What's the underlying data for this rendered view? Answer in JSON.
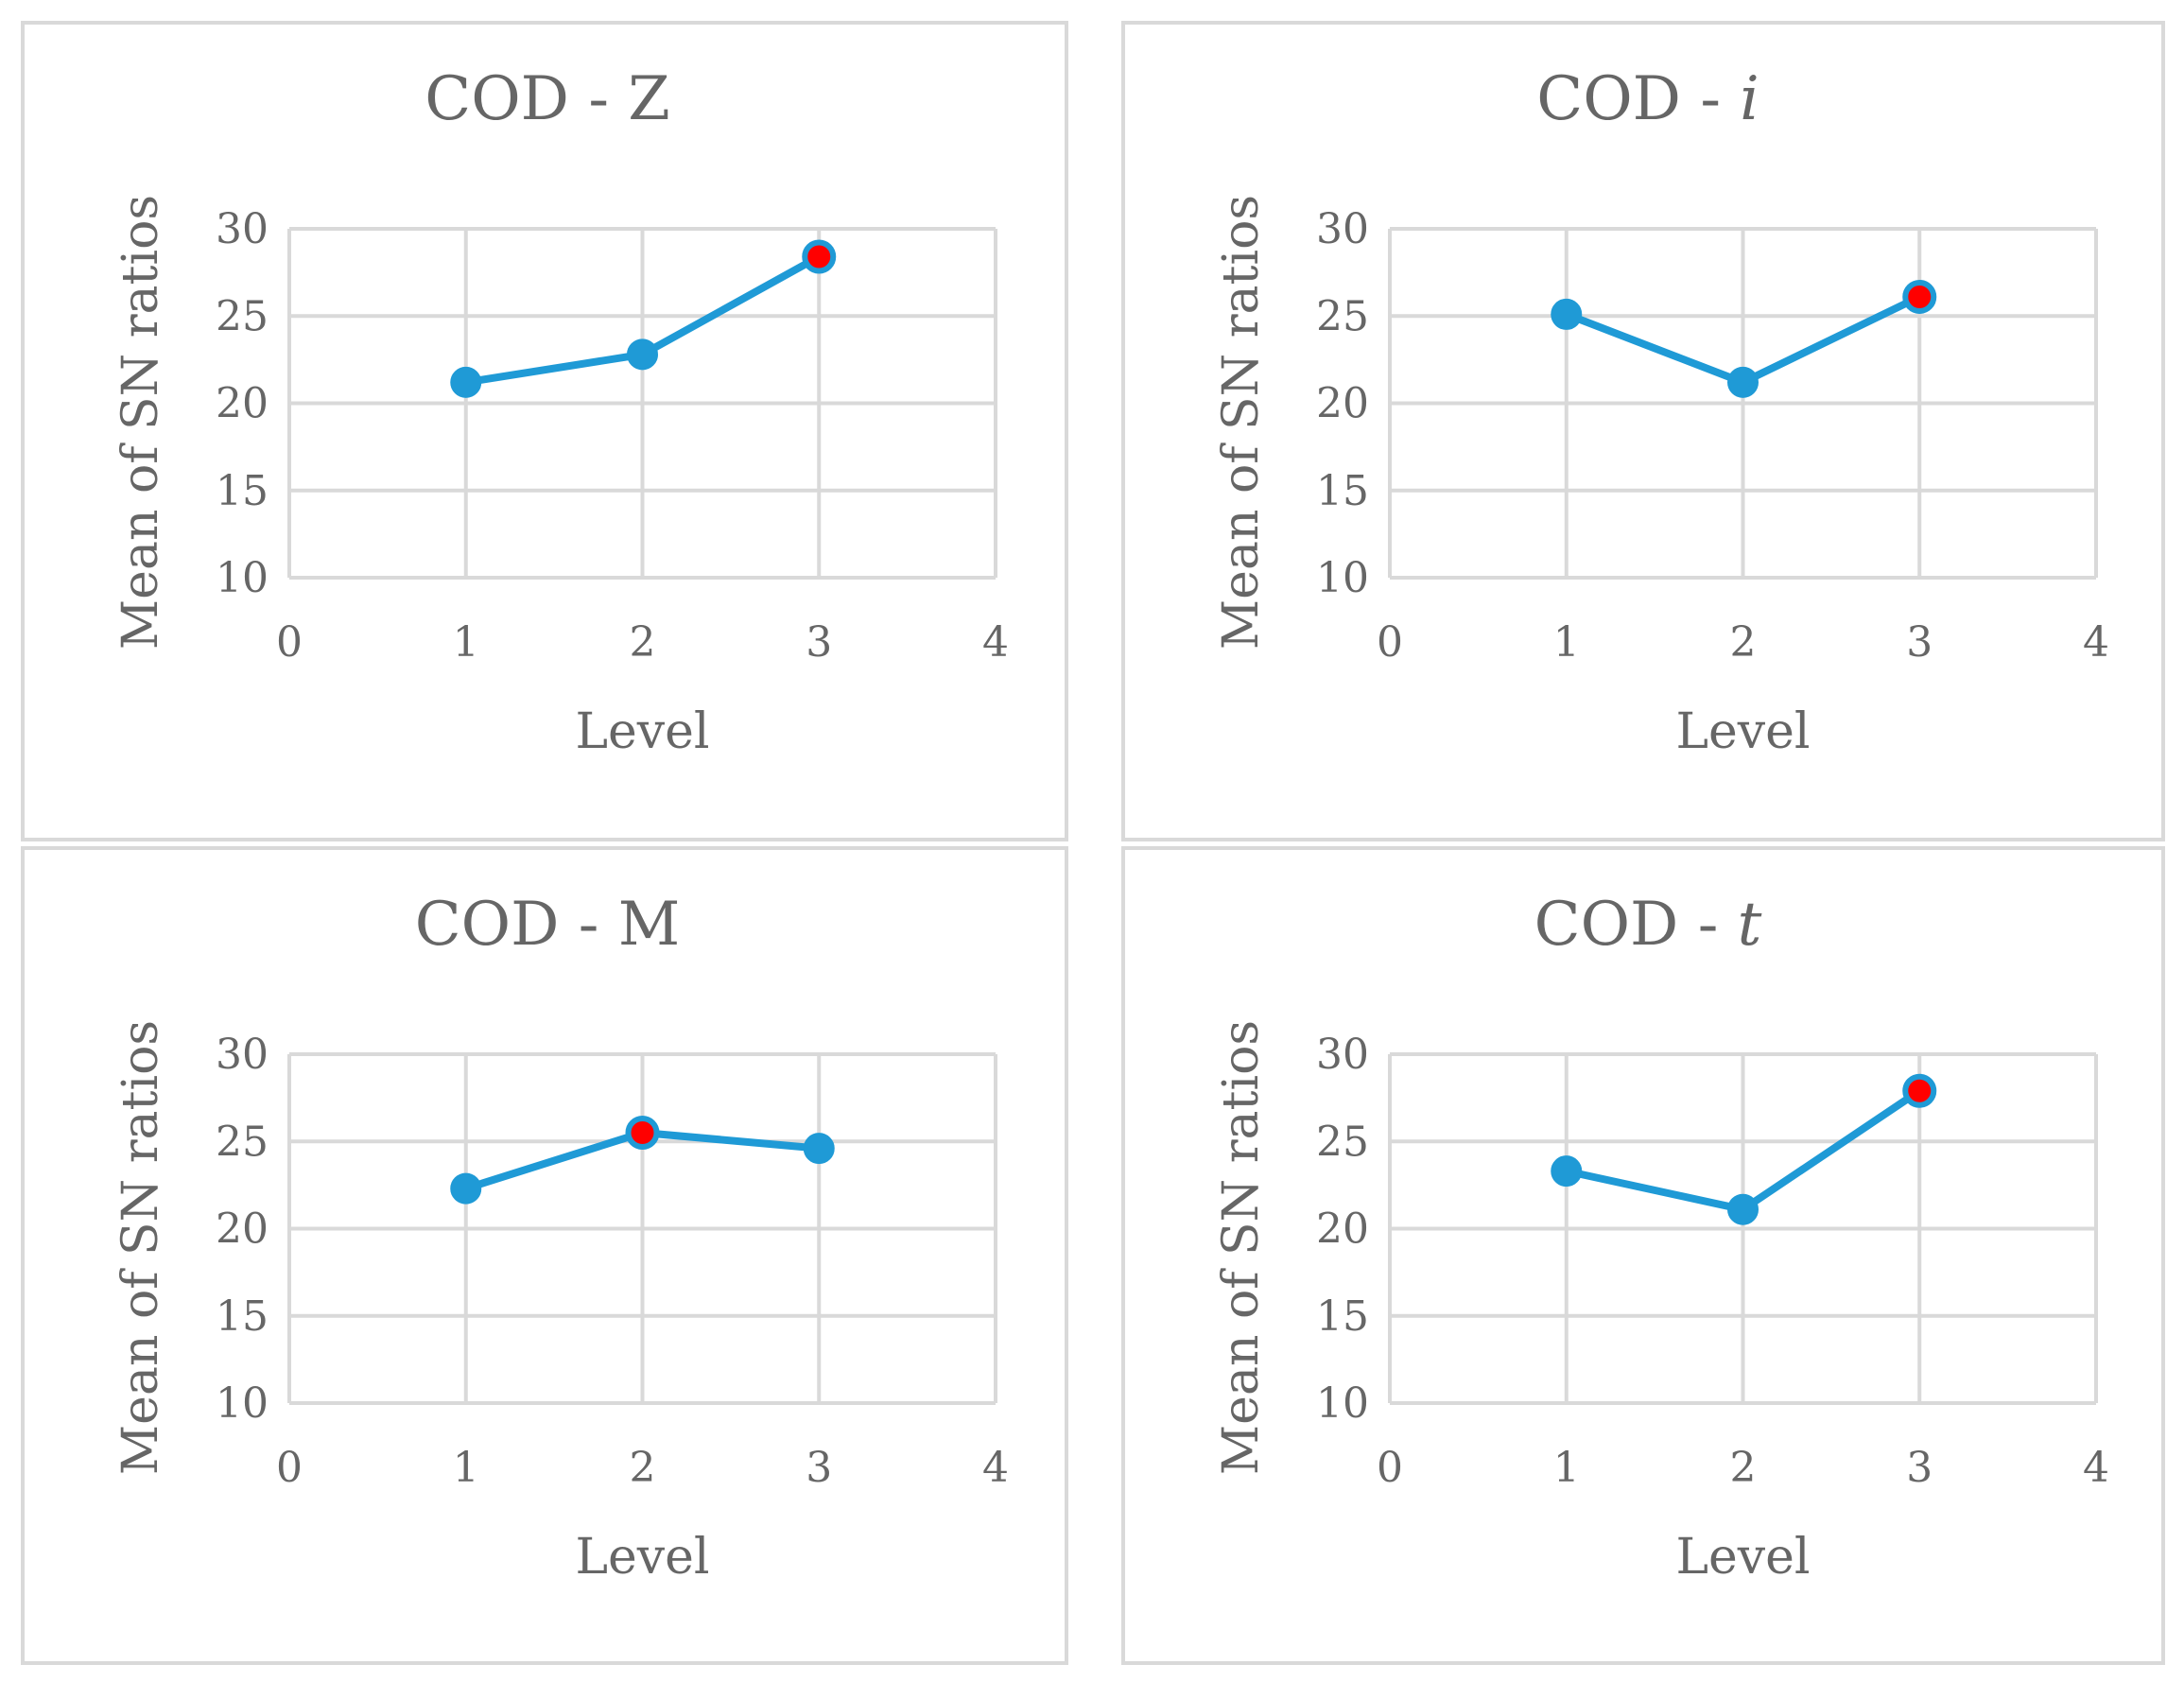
{
  "chart_data": [
    {
      "type": "line",
      "title_main": "COD - ",
      "title_var": "Z",
      "title_italic": false,
      "xlabel": "Level",
      "ylabel": "Mean of SN ratios",
      "xlim": [
        0,
        4
      ],
      "ylim": [
        10,
        30
      ],
      "xticks": [
        0,
        1,
        2,
        3,
        4
      ],
      "yticks": [
        10,
        15,
        20,
        25,
        30
      ],
      "grid": true,
      "x": [
        1,
        2,
        3
      ],
      "y": [
        21.2,
        22.8,
        28.4
      ],
      "highlight_index": 2,
      "line_color": "#1f9ad6",
      "highlight_color": "#ff0000"
    },
    {
      "type": "line",
      "title_main": "COD - ",
      "title_var": "i",
      "title_italic": true,
      "xlabel": "Level",
      "ylabel": "Mean of SN ratios",
      "xlim": [
        0,
        4
      ],
      "ylim": [
        10,
        30
      ],
      "xticks": [
        0,
        1,
        2,
        3,
        4
      ],
      "yticks": [
        10,
        15,
        20,
        25,
        30
      ],
      "grid": true,
      "x": [
        1,
        2,
        3
      ],
      "y": [
        25.1,
        21.2,
        26.1
      ],
      "highlight_index": 2,
      "line_color": "#1f9ad6",
      "highlight_color": "#ff0000"
    },
    {
      "type": "line",
      "title_main": "COD - ",
      "title_var": "M",
      "title_italic": false,
      "xlabel": "Level",
      "ylabel": "Mean of SN ratios",
      "xlim": [
        0,
        4
      ],
      "ylim": [
        10,
        30
      ],
      "xticks": [
        0,
        1,
        2,
        3,
        4
      ],
      "yticks": [
        10,
        15,
        20,
        25,
        30
      ],
      "grid": true,
      "x": [
        1,
        2,
        3
      ],
      "y": [
        22.3,
        25.5,
        24.6
      ],
      "highlight_index": 1,
      "line_color": "#1f9ad6",
      "highlight_color": "#ff0000"
    },
    {
      "type": "line",
      "title_main": "COD - ",
      "title_var": "t",
      "title_italic": true,
      "xlabel": "Level",
      "ylabel": "Mean of SN ratios",
      "xlim": [
        0,
        4
      ],
      "ylim": [
        10,
        30
      ],
      "xticks": [
        0,
        1,
        2,
        3,
        4
      ],
      "yticks": [
        10,
        15,
        20,
        25,
        30
      ],
      "grid": true,
      "x": [
        1,
        2,
        3
      ],
      "y": [
        23.3,
        21.1,
        27.9
      ],
      "highlight_index": 2,
      "line_color": "#1f9ad6",
      "highlight_color": "#ff0000"
    }
  ]
}
